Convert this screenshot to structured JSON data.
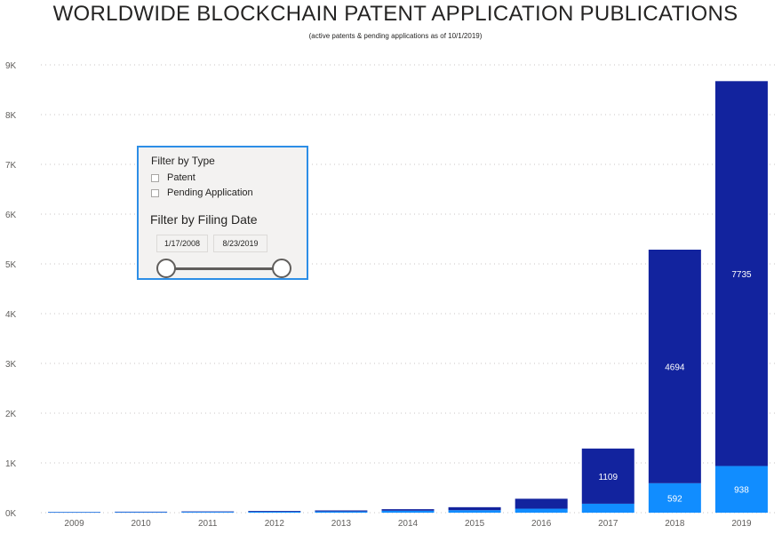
{
  "page": {
    "title": "WORLDWIDE BLOCKCHAIN PATENT APPLICATION PUBLICATIONS",
    "subtitle": "(active patents & pending applications as of 10/1/2019)"
  },
  "filters": {
    "type_heading": "Filter by Type",
    "type_options": [
      {
        "label": "Patent",
        "checked": false
      },
      {
        "label": "Pending Application",
        "checked": false
      }
    ],
    "date_heading": "Filter by Filing Date",
    "date_start": "1/17/2008",
    "date_end": "8/23/2019",
    "date_range_fraction": [
      0,
      1
    ]
  },
  "colors": {
    "series_patent": "#118dff",
    "series_pending": "#12239e",
    "axis_text": "#605e5c",
    "gridline": "#c8c6c4",
    "panel_border": "#2d8ee6",
    "panel_bg": "#f3f2f1"
  },
  "chart_data": {
    "type": "bar",
    "stacked": true,
    "title": "WORLDWIDE BLOCKCHAIN PATENT APPLICATION PUBLICATIONS",
    "subtitle": "(active patents & pending applications as of 10/1/2019)",
    "xlabel": "",
    "ylabel": "",
    "ylim": [
      0,
      9000
    ],
    "yticks": [
      0,
      1000,
      2000,
      3000,
      4000,
      5000,
      6000,
      7000,
      8000,
      9000
    ],
    "ytick_labels": [
      "0K",
      "1K",
      "2K",
      "3K",
      "4K",
      "5K",
      "6K",
      "7K",
      "8K",
      "9K"
    ],
    "grid": true,
    "categories": [
      "2009",
      "2010",
      "2011",
      "2012",
      "2013",
      "2014",
      "2015",
      "2016",
      "2017",
      "2018",
      "2019"
    ],
    "series": [
      {
        "name": "Patent",
        "color": "#118dff",
        "values": [
          10,
          12,
          15,
          20,
          25,
          40,
          50,
          80,
          180,
          592,
          938
        ],
        "labels": [
          null,
          null,
          null,
          null,
          null,
          null,
          null,
          null,
          null,
          "592",
          "938"
        ]
      },
      {
        "name": "Pending Application",
        "color": "#12239e",
        "values": [
          5,
          8,
          10,
          15,
          20,
          30,
          60,
          200,
          1109,
          4694,
          7735
        ],
        "labels": [
          null,
          null,
          null,
          null,
          null,
          null,
          null,
          null,
          "1109",
          "4694",
          "7735"
        ]
      }
    ]
  }
}
